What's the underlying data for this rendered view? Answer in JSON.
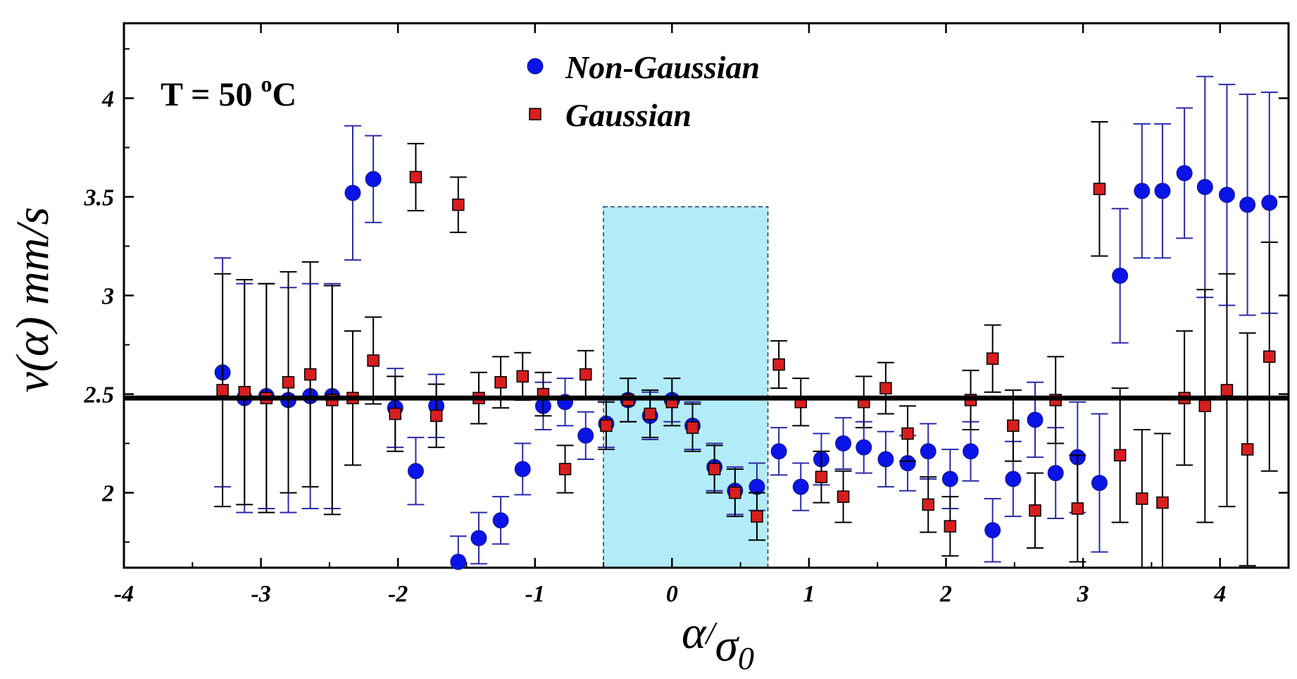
{
  "chart_data": {
    "type": "scatter",
    "annotation": {
      "text_base": "T = 50 ",
      "superscript": "o",
      "text_tail": "C"
    },
    "xlabel": {
      "main": "α",
      "slash": "/",
      "denominator": "σ",
      "subscript": "0"
    },
    "ylabel": "v(α) mm/s",
    "xlim": [
      -4,
      4.5
    ],
    "ylim": [
      1.62,
      4.38
    ],
    "x_ticks": [
      -4,
      -3,
      -2,
      -1,
      0,
      1,
      2,
      3,
      4
    ],
    "x_tick_labels": [
      "-4",
      "-3",
      "-2",
      "-1",
      "0",
      "1",
      "2",
      "3",
      "4"
    ],
    "y_ticks": [
      2,
      2.5,
      3,
      3.5,
      4
    ],
    "y_tick_labels": [
      "2",
      "2.5",
      "3",
      "3.5",
      "4"
    ],
    "reference_line": {
      "y": 2.48,
      "color": "#000000"
    },
    "shaded_region": {
      "x_range": [
        -0.5,
        0.7
      ],
      "y_range": [
        1.62,
        3.45
      ],
      "color": "#b3ecf9"
    },
    "legend_position": "top-center",
    "series": [
      {
        "name": "Non-Gaussian",
        "marker": "circle",
        "color": "#0a14e6",
        "errorbar_color": "#2a2aa8",
        "points": [
          {
            "x": -3.28,
            "y": 2.61,
            "err": 0.58
          },
          {
            "x": -3.12,
            "y": 2.48,
            "err": 0.58
          },
          {
            "x": -2.96,
            "y": 2.49,
            "err": 0.57
          },
          {
            "x": -2.8,
            "y": 2.47,
            "err": 0.57
          },
          {
            "x": -2.64,
            "y": 2.49,
            "err": 0.57
          },
          {
            "x": -2.48,
            "y": 2.49,
            "err": 0.57
          },
          {
            "x": -2.33,
            "y": 3.52,
            "err": 0.34
          },
          {
            "x": -2.18,
            "y": 3.59,
            "err": 0.22
          },
          {
            "x": -2.02,
            "y": 2.43,
            "err": 0.2
          },
          {
            "x": -1.87,
            "y": 2.11,
            "err": 0.17
          },
          {
            "x": -1.72,
            "y": 2.44,
            "err": 0.16
          },
          {
            "x": -1.56,
            "y": 1.65,
            "err": 0.13
          },
          {
            "x": -1.41,
            "y": 1.77,
            "err": 0.13
          },
          {
            "x": -1.25,
            "y": 1.86,
            "err": 0.12
          },
          {
            "x": -1.09,
            "y": 2.12,
            "err": 0.13
          },
          {
            "x": -0.94,
            "y": 2.44,
            "err": 0.12
          },
          {
            "x": -0.78,
            "y": 2.46,
            "err": 0.12
          },
          {
            "x": -0.63,
            "y": 2.29,
            "err": 0.12
          },
          {
            "x": -0.48,
            "y": 2.35,
            "err": 0.12
          },
          {
            "x": -0.32,
            "y": 2.47,
            "err": 0.11
          },
          {
            "x": -0.16,
            "y": 2.39,
            "err": 0.12
          },
          {
            "x": 0.0,
            "y": 2.47,
            "err": 0.11
          },
          {
            "x": 0.15,
            "y": 2.34,
            "err": 0.12
          },
          {
            "x": 0.31,
            "y": 2.13,
            "err": 0.12
          },
          {
            "x": 0.46,
            "y": 2.01,
            "err": 0.12
          },
          {
            "x": 0.62,
            "y": 2.03,
            "err": 0.12
          },
          {
            "x": 0.78,
            "y": 2.21,
            "err": 0.12
          },
          {
            "x": 0.94,
            "y": 2.03,
            "err": 0.12
          },
          {
            "x": 1.09,
            "y": 2.17,
            "err": 0.13
          },
          {
            "x": 1.25,
            "y": 2.25,
            "err": 0.13
          },
          {
            "x": 1.4,
            "y": 2.23,
            "err": 0.13
          },
          {
            "x": 1.56,
            "y": 2.17,
            "err": 0.14
          },
          {
            "x": 1.72,
            "y": 2.15,
            "err": 0.14
          },
          {
            "x": 1.87,
            "y": 2.21,
            "err": 0.14
          },
          {
            "x": 2.03,
            "y": 2.07,
            "err": 0.15
          },
          {
            "x": 2.18,
            "y": 2.21,
            "err": 0.15
          },
          {
            "x": 2.34,
            "y": 1.81,
            "err": 0.16
          },
          {
            "x": 2.49,
            "y": 2.07,
            "err": 0.19
          },
          {
            "x": 2.65,
            "y": 2.37,
            "err": 0.19
          },
          {
            "x": 2.8,
            "y": 2.1,
            "err": 0.23
          },
          {
            "x": 2.96,
            "y": 2.18,
            "err": 0.28
          },
          {
            "x": 3.12,
            "y": 2.05,
            "err": 0.35
          },
          {
            "x": 3.27,
            "y": 3.1,
            "err": 0.34
          },
          {
            "x": 3.43,
            "y": 3.53,
            "err": 0.34
          },
          {
            "x": 3.58,
            "y": 3.53,
            "err": 0.34
          },
          {
            "x": 3.74,
            "y": 3.62,
            "err": 0.33
          },
          {
            "x": 3.89,
            "y": 3.55,
            "err": 0.56
          },
          {
            "x": 4.05,
            "y": 3.51,
            "err": 0.56
          },
          {
            "x": 4.2,
            "y": 3.46,
            "err": 0.56
          },
          {
            "x": 4.36,
            "y": 3.47,
            "err": 0.56
          }
        ]
      },
      {
        "name": "Gaussian",
        "marker": "square",
        "color": "#d81e1e",
        "errorbar_color": "#000000",
        "points": [
          {
            "x": -3.28,
            "y": 2.52,
            "err": 0.59
          },
          {
            "x": -3.12,
            "y": 2.51,
            "err": 0.57
          },
          {
            "x": -2.96,
            "y": 2.48,
            "err": 0.58
          },
          {
            "x": -2.8,
            "y": 2.56,
            "err": 0.56
          },
          {
            "x": -2.64,
            "y": 2.6,
            "err": 0.57
          },
          {
            "x": -2.48,
            "y": 2.47,
            "err": 0.58
          },
          {
            "x": -2.33,
            "y": 2.48,
            "err": 0.34
          },
          {
            "x": -2.18,
            "y": 2.67,
            "err": 0.22
          },
          {
            "x": -2.02,
            "y": 2.4,
            "err": 0.19
          },
          {
            "x": -1.87,
            "y": 3.6,
            "err": 0.17
          },
          {
            "x": -1.72,
            "y": 2.39,
            "err": 0.16
          },
          {
            "x": -1.56,
            "y": 3.46,
            "err": 0.14
          },
          {
            "x": -1.41,
            "y": 2.48,
            "err": 0.13
          },
          {
            "x": -1.25,
            "y": 2.56,
            "err": 0.13
          },
          {
            "x": -1.09,
            "y": 2.59,
            "err": 0.12
          },
          {
            "x": -0.94,
            "y": 2.5,
            "err": 0.11
          },
          {
            "x": -0.78,
            "y": 2.12,
            "err": 0.12
          },
          {
            "x": -0.63,
            "y": 2.6,
            "err": 0.12
          },
          {
            "x": -0.48,
            "y": 2.34,
            "err": 0.12
          },
          {
            "x": -0.32,
            "y": 2.47,
            "err": 0.11
          },
          {
            "x": -0.16,
            "y": 2.4,
            "err": 0.12
          },
          {
            "x": 0.0,
            "y": 2.46,
            "err": 0.12
          },
          {
            "x": 0.15,
            "y": 2.33,
            "err": 0.12
          },
          {
            "x": 0.31,
            "y": 2.12,
            "err": 0.12
          },
          {
            "x": 0.46,
            "y": 2.0,
            "err": 0.12
          },
          {
            "x": 0.62,
            "y": 1.88,
            "err": 0.12
          },
          {
            "x": 0.78,
            "y": 2.65,
            "err": 0.12
          },
          {
            "x": 0.94,
            "y": 2.46,
            "err": 0.12
          },
          {
            "x": 1.09,
            "y": 2.08,
            "err": 0.13
          },
          {
            "x": 1.25,
            "y": 1.98,
            "err": 0.13
          },
          {
            "x": 1.4,
            "y": 2.46,
            "err": 0.13
          },
          {
            "x": 1.56,
            "y": 2.53,
            "err": 0.13
          },
          {
            "x": 1.72,
            "y": 2.3,
            "err": 0.14
          },
          {
            "x": 1.87,
            "y": 1.94,
            "err": 0.14
          },
          {
            "x": 2.03,
            "y": 1.83,
            "err": 0.15
          },
          {
            "x": 2.18,
            "y": 2.47,
            "err": 0.15
          },
          {
            "x": 2.34,
            "y": 2.68,
            "err": 0.17
          },
          {
            "x": 2.49,
            "y": 2.34,
            "err": 0.18
          },
          {
            "x": 2.65,
            "y": 1.91,
            "err": 0.19
          },
          {
            "x": 2.8,
            "y": 2.47,
            "err": 0.22
          },
          {
            "x": 2.96,
            "y": 1.92,
            "err": 0.27
          },
          {
            "x": 3.12,
            "y": 3.54,
            "err": 0.34
          },
          {
            "x": 3.27,
            "y": 2.19,
            "err": 0.34
          },
          {
            "x": 3.43,
            "y": 1.97,
            "err": 0.35
          },
          {
            "x": 3.58,
            "y": 1.95,
            "err": 0.35
          },
          {
            "x": 3.74,
            "y": 2.48,
            "err": 0.34
          },
          {
            "x": 3.89,
            "y": 2.44,
            "err": 0.59
          },
          {
            "x": 4.05,
            "y": 2.52,
            "err": 0.59
          },
          {
            "x": 4.2,
            "y": 2.22,
            "err": 0.59
          },
          {
            "x": 4.36,
            "y": 2.69,
            "err": 0.58
          }
        ]
      }
    ]
  }
}
